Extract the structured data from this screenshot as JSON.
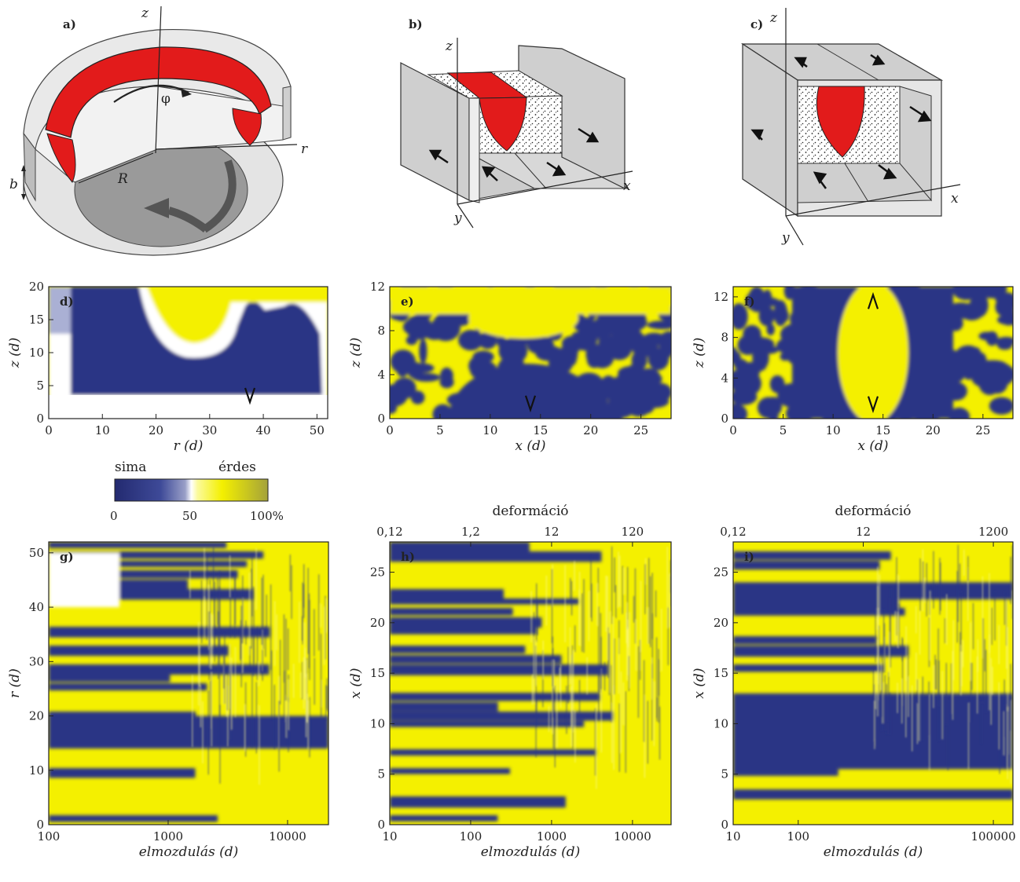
{
  "panel_labels": [
    "a)",
    "b)",
    "c)",
    "d)",
    "e)",
    "f)",
    "g)",
    "h)",
    "i)"
  ],
  "schematics": {
    "a": {
      "axis_z": "z",
      "axis_r": "r",
      "phi": "φ",
      "R": "R",
      "b": "b"
    },
    "b": {
      "axis_z": "z",
      "axis_x": "x",
      "axis_y": "y"
    },
    "c": {
      "axis_z": "z",
      "axis_x": "x",
      "axis_y": "y"
    }
  },
  "colorbar": {
    "label_left": "sima",
    "label_right": "érdes",
    "ticks": [
      "0",
      "50",
      "100%"
    ],
    "colors": {
      "low": "#2c3585",
      "mid": "#ffffff",
      "high": "#f4f000",
      "top": "#a4a23a"
    }
  },
  "chart_data": [
    {
      "id": "d",
      "type": "heatmap",
      "xlabel": "r (d)",
      "ylabel": "z (d)",
      "xlim": [
        0,
        52
      ],
      "ylim": [
        0,
        20
      ],
      "xticks": [
        "0",
        "10",
        "20",
        "30",
        "40",
        "50"
      ],
      "xtick_values": [
        0,
        10,
        20,
        30,
        40,
        50
      ],
      "yticks": [
        "0",
        "5",
        "10",
        "15",
        "20"
      ],
      "ytick_values": [
        0,
        5,
        10,
        15,
        20
      ],
      "markers": [
        {
          "x": 37.5,
          "y": 2.5,
          "dir": "down"
        }
      ]
    },
    {
      "id": "e",
      "type": "heatmap",
      "xlabel": "x (d)",
      "ylabel": "z (d)",
      "xlim": [
        0,
        28
      ],
      "ylim": [
        0,
        12
      ],
      "xticks": [
        "0",
        "5",
        "10",
        "15",
        "20",
        "25"
      ],
      "xtick_values": [
        0,
        5,
        10,
        15,
        20,
        25
      ],
      "yticks": [
        "0",
        "4",
        "8",
        "12"
      ],
      "ytick_values": [
        0,
        4,
        8,
        12
      ],
      "markers": [
        {
          "x": 14,
          "y": 0.8,
          "dir": "down"
        }
      ]
    },
    {
      "id": "f",
      "type": "heatmap",
      "xlabel": "x (d)",
      "ylabel": "z (d)",
      "xlim": [
        0,
        28
      ],
      "ylim": [
        0,
        13
      ],
      "xticks": [
        "0",
        "5",
        "10",
        "15",
        "20",
        "25"
      ],
      "xtick_values": [
        0,
        5,
        10,
        15,
        20,
        25
      ],
      "yticks": [
        "0",
        "4",
        "8",
        "12"
      ],
      "ytick_values": [
        0,
        4,
        8,
        12
      ],
      "markers": [
        {
          "x": 14,
          "y": 0.8,
          "dir": "down"
        },
        {
          "x": 14,
          "y": 12.2,
          "dir": "up"
        }
      ]
    },
    {
      "id": "g",
      "type": "heatmap",
      "xlabel": "elmozdulás (d)",
      "ylabel": "r (d)",
      "xscale": "log",
      "xlim": [
        100,
        22000
      ],
      "ylim": [
        0,
        52
      ],
      "xticks": [
        "100",
        "1000",
        "10000"
      ],
      "xtick_values": [
        100,
        1000,
        10000
      ],
      "yticks": [
        "0",
        "10",
        "20",
        "30",
        "40",
        "50"
      ],
      "ytick_values": [
        0,
        10,
        20,
        30,
        40,
        50
      ]
    },
    {
      "id": "h",
      "type": "heatmap",
      "xlabel": "elmozdulás (d)",
      "ylabel": "x (d)",
      "top_label": "deformáció",
      "xscale": "log",
      "xlim": [
        10,
        30000
      ],
      "ylim": [
        0,
        28
      ],
      "xticks": [
        "10",
        "100",
        "1000",
        "10000"
      ],
      "xtick_values": [
        10,
        100,
        1000,
        10000
      ],
      "yticks": [
        "0",
        "5",
        "10",
        "15",
        "20",
        "25"
      ],
      "ytick_values": [
        0,
        5,
        10,
        15,
        20,
        25
      ],
      "top_ticks": [
        "0,12",
        "1,2",
        "12",
        "120"
      ],
      "top_tick_values": [
        10,
        100,
        1000,
        10000
      ]
    },
    {
      "id": "i",
      "type": "heatmap",
      "xlabel": "elmozdulás (d)",
      "ylabel": "x (d)",
      "top_label": "deformáció",
      "xscale": "log",
      "xlim": [
        10,
        200000
      ],
      "ylim": [
        0,
        28
      ],
      "xticks": [
        "10",
        "100",
        "100000"
      ],
      "xtick_values": [
        10,
        100,
        100000
      ],
      "yticks": [
        "0",
        "5",
        "10",
        "15",
        "20",
        "25"
      ],
      "ytick_values": [
        0,
        5,
        10,
        15,
        20,
        25
      ],
      "top_ticks": [
        "0,12",
        "12",
        "1200"
      ],
      "top_tick_values": [
        10,
        1000,
        100000
      ]
    }
  ]
}
